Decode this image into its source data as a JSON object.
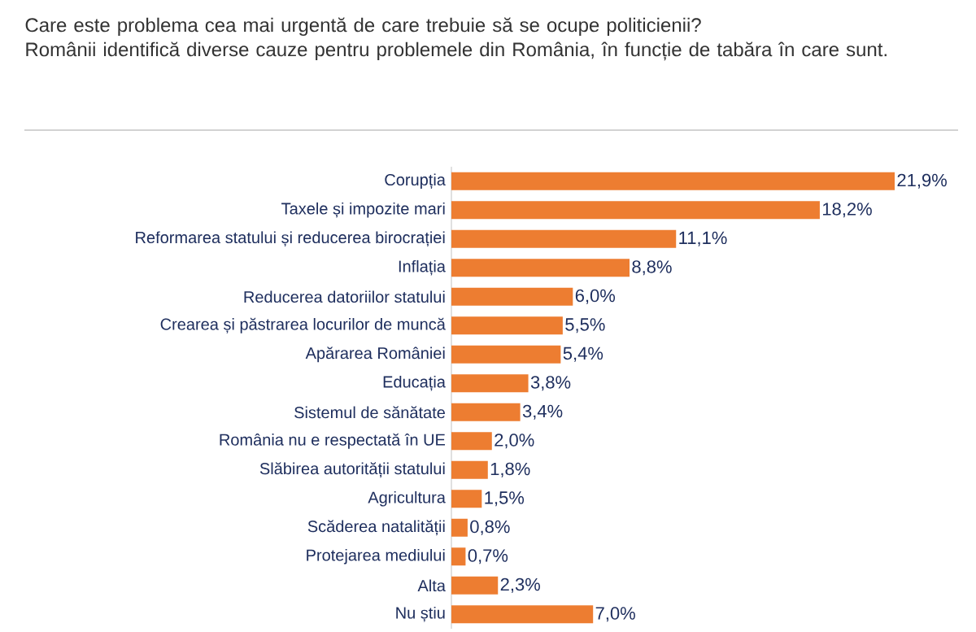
{
  "chart_data": {
    "type": "bar",
    "orientation": "horizontal",
    "title": "Care este problema cea mai urgentă de care trebuie să se ocupe politicienii?",
    "subtitle": "Românii identifică diverse cauze pentru problemele din România, în funcție de tabăra în care sunt.",
    "categories": [
      "Corupția",
      "Taxele și impozite mari",
      "Reformarea statului și reducerea birocrației",
      "Inflația",
      "Reducerea datoriilor statului",
      "Crearea și păstrarea locurilor de muncă",
      "Apărarea României",
      "Educația",
      "Sistemul de sănătate",
      "România nu e respectată în UE",
      "Slăbirea autorității statului",
      "Agricultura",
      "Scăderea natalității",
      "Protejarea mediului",
      "Alta",
      "Nu știu"
    ],
    "values": [
      21.9,
      18.2,
      11.1,
      8.8,
      6.0,
      5.5,
      5.4,
      3.8,
      3.4,
      2.0,
      1.8,
      1.5,
      0.8,
      0.7,
      2.3,
      7.0
    ],
    "value_labels": [
      "21,9%",
      "18,2%",
      "11,1%",
      "8,8%",
      "6,0%",
      "5,5%",
      "5,4%",
      "3,8%",
      "3,4%",
      "2,0%",
      "1,8%",
      "1,5%",
      "0,8%",
      "0,7%",
      "2,3%",
      "7,0%"
    ],
    "color": "#ed7d31"
  }
}
